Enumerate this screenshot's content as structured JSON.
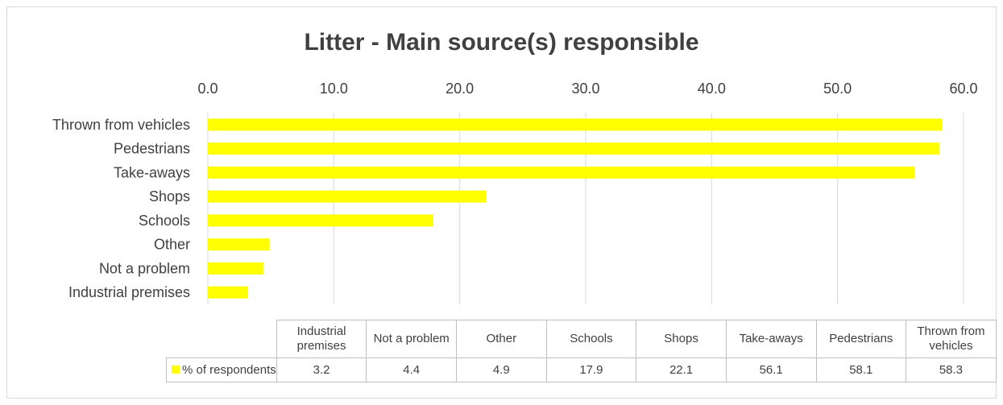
{
  "chart_data": {
    "type": "bar",
    "orientation": "horizontal",
    "title": "Litter - Main source(s) responsible",
    "categories": [
      "Industrial premises",
      "Not a problem",
      "Other",
      "Schools",
      "Shops",
      "Take-aways",
      "Pedestrians",
      "Thrown from vehicles"
    ],
    "table_headers": [
      "Industrial\npremises",
      "Not a problem",
      "Other",
      "Schools",
      "Shops",
      "Take-aways",
      "Pedestrians",
      "Thrown from\nvehicles"
    ],
    "series": [
      {
        "name": "% of respondents",
        "values": [
          3.2,
          4.4,
          4.9,
          17.9,
          22.1,
          56.1,
          58.1,
          58.3
        ],
        "value_labels": [
          "3.2",
          "4.4",
          "4.9",
          "17.9",
          "22.1",
          "56.1",
          "58.1",
          "58.3"
        ],
        "color": "#ffff00"
      }
    ],
    "xlim": [
      0,
      60
    ],
    "ticks": [
      "0.0",
      "10.0",
      "20.0",
      "30.0",
      "40.0",
      "50.0",
      "60.0"
    ],
    "axis_position": "top",
    "grid": true,
    "data_table": true,
    "legend": "data-table"
  }
}
